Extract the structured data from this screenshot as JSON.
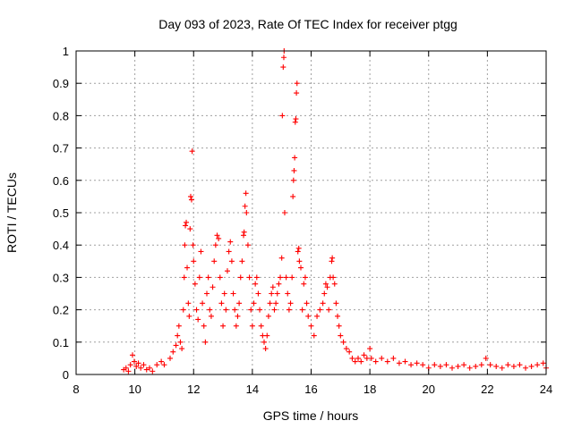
{
  "chart_data": {
    "type": "scatter",
    "title": "Day 093 of 2023, Rate Of TEC Index for receiver ptgg",
    "xlabel": "GPS time / hours",
    "ylabel": "ROTI / TECUs",
    "xlim": [
      8,
      24
    ],
    "ylim": [
      0,
      1
    ],
    "x_ticks": [
      8,
      10,
      12,
      14,
      16,
      18,
      20,
      22,
      24
    ],
    "x_tick_labels": [
      "8",
      "10",
      "12",
      "14",
      "16",
      "18",
      "20",
      "22",
      "24"
    ],
    "y_ticks": [
      0,
      0.1,
      0.2,
      0.3,
      0.4,
      0.5,
      0.6,
      0.7,
      0.8,
      0.9,
      1
    ],
    "y_tick_labels": [
      "0",
      "0.1",
      "0.2",
      "0.3",
      "0.4",
      "0.5",
      "0.6",
      "0.7",
      "0.8",
      "0.9",
      "1"
    ],
    "grid": true,
    "marker": "+",
    "color": "#ff0000",
    "series": [
      {
        "values": [
          [
            9.62,
            0.015
          ],
          [
            9.7,
            0.02
          ],
          [
            9.78,
            0.01
          ],
          [
            9.85,
            0.03
          ],
          [
            9.92,
            0.06
          ],
          [
            9.98,
            0.04
          ],
          [
            10.05,
            0.025
          ],
          [
            10.12,
            0.035
          ],
          [
            10.2,
            0.02
          ],
          [
            10.3,
            0.03
          ],
          [
            10.4,
            0.015
          ],
          [
            10.5,
            0.02
          ],
          [
            10.6,
            0.01
          ],
          [
            10.75,
            0.03
          ],
          [
            10.9,
            0.04
          ],
          [
            11.0,
            0.03
          ],
          [
            11.2,
            0.05
          ],
          [
            11.3,
            0.07
          ],
          [
            11.4,
            0.09
          ],
          [
            11.45,
            0.12
          ],
          [
            11.5,
            0.15
          ],
          [
            11.55,
            0.1
          ],
          [
            11.6,
            0.08
          ],
          [
            11.65,
            0.2
          ],
          [
            11.68,
            0.3
          ],
          [
            11.7,
            0.4
          ],
          [
            11.72,
            0.46
          ],
          [
            11.75,
            0.47
          ],
          [
            11.78,
            0.33
          ],
          [
            11.82,
            0.22
          ],
          [
            11.85,
            0.18
          ],
          [
            11.88,
            0.45
          ],
          [
            11.9,
            0.55
          ],
          [
            11.93,
            0.54
          ],
          [
            11.95,
            0.69
          ],
          [
            11.98,
            0.4
          ],
          [
            12.0,
            0.35
          ],
          [
            12.05,
            0.28
          ],
          [
            12.1,
            0.2
          ],
          [
            12.15,
            0.17
          ],
          [
            12.2,
            0.3
          ],
          [
            12.25,
            0.38
          ],
          [
            12.3,
            0.22
          ],
          [
            12.35,
            0.15
          ],
          [
            12.4,
            0.1
          ],
          [
            12.45,
            0.25
          ],
          [
            12.5,
            0.3
          ],
          [
            12.55,
            0.2
          ],
          [
            12.6,
            0.18
          ],
          [
            12.65,
            0.27
          ],
          [
            12.7,
            0.35
          ],
          [
            12.75,
            0.4
          ],
          [
            12.8,
            0.43
          ],
          [
            12.85,
            0.42
          ],
          [
            12.9,
            0.3
          ],
          [
            12.95,
            0.22
          ],
          [
            13.0,
            0.15
          ],
          [
            13.05,
            0.25
          ],
          [
            13.1,
            0.2
          ],
          [
            13.15,
            0.32
          ],
          [
            13.2,
            0.38
          ],
          [
            13.25,
            0.41
          ],
          [
            13.3,
            0.35
          ],
          [
            13.35,
            0.25
          ],
          [
            13.4,
            0.2
          ],
          [
            13.45,
            0.15
          ],
          [
            13.5,
            0.18
          ],
          [
            13.55,
            0.22
          ],
          [
            13.6,
            0.3
          ],
          [
            13.65,
            0.35
          ],
          [
            13.7,
            0.43
          ],
          [
            13.72,
            0.44
          ],
          [
            13.75,
            0.52
          ],
          [
            13.78,
            0.56
          ],
          [
            13.8,
            0.5
          ],
          [
            13.85,
            0.4
          ],
          [
            13.9,
            0.3
          ],
          [
            13.95,
            0.2
          ],
          [
            14.0,
            0.15
          ],
          [
            14.05,
            0.22
          ],
          [
            14.1,
            0.28
          ],
          [
            14.15,
            0.3
          ],
          [
            14.2,
            0.25
          ],
          [
            14.25,
            0.2
          ],
          [
            14.3,
            0.15
          ],
          [
            14.35,
            0.12
          ],
          [
            14.4,
            0.1
          ],
          [
            14.45,
            0.08
          ],
          [
            14.5,
            0.12
          ],
          [
            14.55,
            0.18
          ],
          [
            14.6,
            0.22
          ],
          [
            14.65,
            0.25
          ],
          [
            14.7,
            0.27
          ],
          [
            14.75,
            0.2
          ],
          [
            14.8,
            0.22
          ],
          [
            14.85,
            0.25
          ],
          [
            14.9,
            0.28
          ],
          [
            14.95,
            0.3
          ],
          [
            15.0,
            0.36
          ],
          [
            15.02,
            0.8
          ],
          [
            15.05,
            0.95
          ],
          [
            15.07,
            0.98
          ],
          [
            15.08,
            1.0
          ],
          [
            15.1,
            0.5
          ],
          [
            15.15,
            0.3
          ],
          [
            15.2,
            0.25
          ],
          [
            15.25,
            0.2
          ],
          [
            15.3,
            0.22
          ],
          [
            15.35,
            0.3
          ],
          [
            15.38,
            0.55
          ],
          [
            15.4,
            0.6
          ],
          [
            15.42,
            0.63
          ],
          [
            15.44,
            0.67
          ],
          [
            15.46,
            0.78
          ],
          [
            15.48,
            0.79
          ],
          [
            15.5,
            0.87
          ],
          [
            15.52,
            0.9
          ],
          [
            15.55,
            0.38
          ],
          [
            15.58,
            0.39
          ],
          [
            15.6,
            0.35
          ],
          [
            15.65,
            0.33
          ],
          [
            15.7,
            0.2
          ],
          [
            15.75,
            0.28
          ],
          [
            15.8,
            0.3
          ],
          [
            15.85,
            0.22
          ],
          [
            15.9,
            0.18
          ],
          [
            16.0,
            0.15
          ],
          [
            16.1,
            0.12
          ],
          [
            16.2,
            0.18
          ],
          [
            16.3,
            0.2
          ],
          [
            16.4,
            0.22
          ],
          [
            16.45,
            0.25
          ],
          [
            16.5,
            0.28
          ],
          [
            16.55,
            0.27
          ],
          [
            16.6,
            0.2
          ],
          [
            16.65,
            0.3
          ],
          [
            16.7,
            0.35
          ],
          [
            16.72,
            0.36
          ],
          [
            16.75,
            0.3
          ],
          [
            16.8,
            0.28
          ],
          [
            16.85,
            0.22
          ],
          [
            16.9,
            0.18
          ],
          [
            16.95,
            0.15
          ],
          [
            17.0,
            0.12
          ],
          [
            17.1,
            0.1
          ],
          [
            17.2,
            0.08
          ],
          [
            17.3,
            0.07
          ],
          [
            17.4,
            0.05
          ],
          [
            17.5,
            0.04
          ],
          [
            17.6,
            0.05
          ],
          [
            17.7,
            0.04
          ],
          [
            17.8,
            0.06
          ],
          [
            17.9,
            0.05
          ],
          [
            18.0,
            0.08
          ],
          [
            18.05,
            0.05
          ],
          [
            18.2,
            0.04
          ],
          [
            18.4,
            0.05
          ],
          [
            18.6,
            0.04
          ],
          [
            18.8,
            0.05
          ],
          [
            19.0,
            0.035
          ],
          [
            19.2,
            0.04
          ],
          [
            19.4,
            0.03
          ],
          [
            19.6,
            0.035
          ],
          [
            19.8,
            0.03
          ],
          [
            20.0,
            0.02
          ],
          [
            20.2,
            0.03
          ],
          [
            20.4,
            0.025
          ],
          [
            20.6,
            0.03
          ],
          [
            20.8,
            0.02
          ],
          [
            21.0,
            0.025
          ],
          [
            21.2,
            0.03
          ],
          [
            21.4,
            0.02
          ],
          [
            21.6,
            0.025
          ],
          [
            21.8,
            0.03
          ],
          [
            21.95,
            0.05
          ],
          [
            22.1,
            0.03
          ],
          [
            22.3,
            0.025
          ],
          [
            22.5,
            0.02
          ],
          [
            22.7,
            0.03
          ],
          [
            22.9,
            0.025
          ],
          [
            23.1,
            0.03
          ],
          [
            23.3,
            0.02
          ],
          [
            23.5,
            0.025
          ],
          [
            23.7,
            0.03
          ],
          [
            23.9,
            0.035
          ],
          [
            24.0,
            0.02
          ]
        ]
      }
    ]
  }
}
